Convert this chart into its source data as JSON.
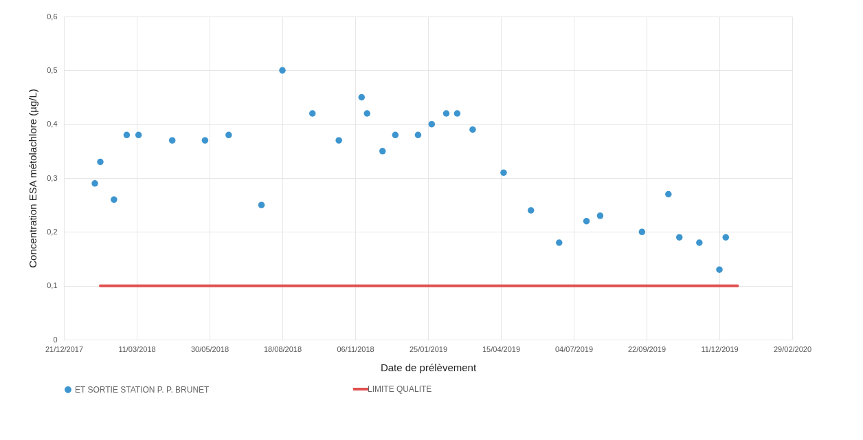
{
  "chart_data": {
    "type": "scatter",
    "xlabel": "Date de prélèvement",
    "ylabel": "Concentration ESA métolachlore (µg/L)",
    "x": [
      "2018-01-24",
      "2018-01-30",
      "2018-02-14",
      "2018-02-28",
      "2018-03-13",
      "2018-04-19",
      "2018-05-25",
      "2018-06-20",
      "2018-07-26",
      "2018-08-18",
      "2018-09-20",
      "2018-10-19",
      "2018-11-13",
      "2018-11-19",
      "2018-12-06",
      "2018-12-20",
      "2019-01-14",
      "2019-01-29",
      "2019-02-14",
      "2019-02-26",
      "2019-03-15",
      "2019-04-18",
      "2019-05-18",
      "2019-06-18",
      "2019-07-18",
      "2019-08-02",
      "2019-09-17",
      "2019-10-16",
      "2019-10-28",
      "2019-11-19",
      "2019-12-11",
      "2019-12-18"
    ],
    "series": [
      {
        "name": "ET SORTIE STATION P. P. BRUNET",
        "color": "#3d95cf",
        "marker": "circle",
        "values": [
          0.29,
          0.33,
          0.26,
          0.38,
          0.38,
          0.37,
          0.37,
          0.38,
          0.25,
          0.5,
          0.42,
          0.37,
          0.45,
          0.42,
          0.35,
          0.38,
          0.38,
          0.4,
          0.42,
          0.42,
          0.39,
          0.31,
          0.24,
          0.18,
          0.22,
          0.23,
          0.2,
          0.27,
          0.19,
          0.18,
          0.13,
          0.19
        ]
      },
      {
        "name": "LIMITE QUALITE",
        "type": "line",
        "color": "#e0504f",
        "marker": "none",
        "x": [
          "2018-01-30",
          "2019-12-31"
        ],
        "values": [
          0.1,
          0.1
        ]
      }
    ],
    "xlim": [
      "2017-12-21",
      "2020-02-29"
    ],
    "xticks": [
      {
        "value": "2017-12-21",
        "label": "21/12/2017"
      },
      {
        "value": "2018-03-11",
        "label": "11/03/2018"
      },
      {
        "value": "2018-05-30",
        "label": "30/05/2018"
      },
      {
        "value": "2018-08-18",
        "label": "18/08/2018"
      },
      {
        "value": "2018-11-06",
        "label": "06/11/2018"
      },
      {
        "value": "2019-01-25",
        "label": "25/01/2019"
      },
      {
        "value": "2019-04-15",
        "label": "15/04/2019"
      },
      {
        "value": "2019-07-04",
        "label": "04/07/2019"
      },
      {
        "value": "2019-09-22",
        "label": "22/09/2019"
      },
      {
        "value": "2019-12-11",
        "label": "11/12/2019"
      },
      {
        "value": "2020-02-29",
        "label": "29/02/2020"
      }
    ],
    "ylim": [
      0,
      0.6
    ],
    "yticks": [
      0,
      {
        "value": 0.1,
        "label": "0,1"
      },
      {
        "value": 0.2,
        "label": "0,2"
      },
      {
        "value": 0.3,
        "label": "0,3"
      },
      {
        "value": 0.4,
        "label": "0,4"
      },
      {
        "value": 0.5,
        "label": "0,5"
      },
      {
        "value": 0.6,
        "label": "0,6"
      }
    ],
    "grid": true,
    "legend": "bottom",
    "line_style": "solid"
  }
}
